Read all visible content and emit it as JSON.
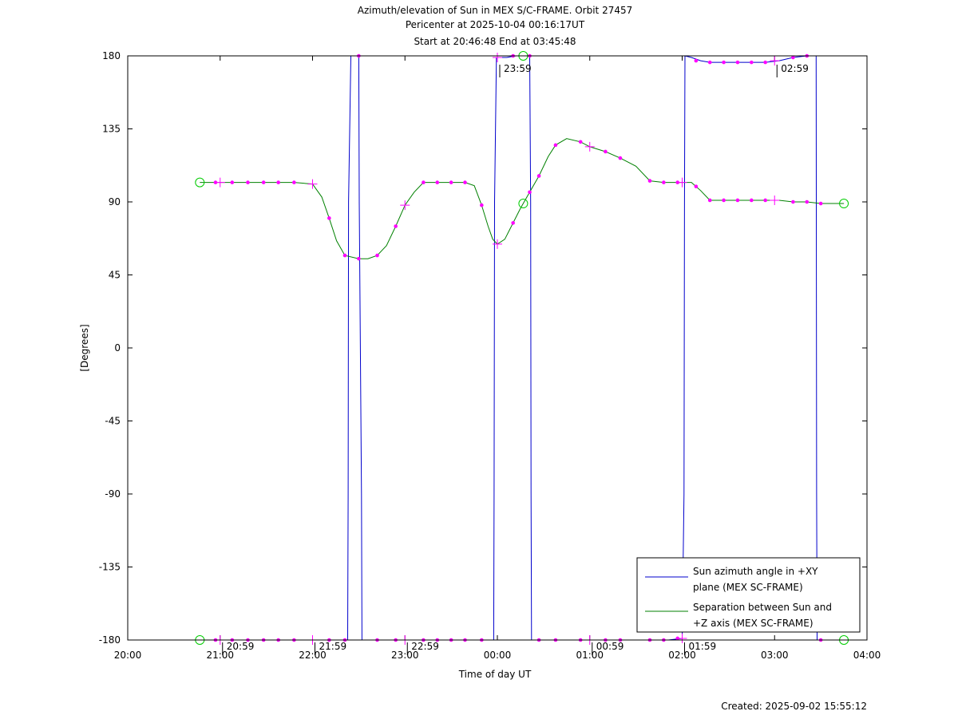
{
  "chart_data": {
    "type": "line",
    "title": [
      "Azimuth/elevation of Sun in MEX S/C-FRAME.  Orbit 27457",
      "Pericenter at 2025-10-04 00:16:17UT",
      "Start at 20:46:48 End at 03:45:48"
    ],
    "xlabel": "Time of day UT",
    "ylabel": "[Degrees]",
    "x_unit": "hours since 20:00 UT",
    "xlim": [
      0,
      8
    ],
    "ylim": [
      -180,
      180
    ],
    "x_ticks": [
      {
        "v": 0,
        "label": "20:00"
      },
      {
        "v": 1,
        "label": "21:00"
      },
      {
        "v": 2,
        "label": "22:00"
      },
      {
        "v": 3,
        "label": "23:00"
      },
      {
        "v": 4,
        "label": "00:00"
      },
      {
        "v": 5,
        "label": "01:00"
      },
      {
        "v": 6,
        "label": "02:00"
      },
      {
        "v": 7,
        "label": "03:00"
      },
      {
        "v": 8,
        "label": "04:00"
      }
    ],
    "y_ticks": [
      {
        "v": 180,
        "label": "180"
      },
      {
        "v": 135,
        "label": "135"
      },
      {
        "v": 90,
        "label": "90"
      },
      {
        "v": 45,
        "label": "45"
      },
      {
        "v": 0,
        "label": "0"
      },
      {
        "v": -45,
        "label": "-45"
      },
      {
        "v": -90,
        "label": "-90"
      },
      {
        "v": -135,
        "label": "-135"
      },
      {
        "v": -180,
        "label": "-180"
      }
    ],
    "annotations": [
      {
        "x": 1.0,
        "y": -180,
        "label": "20:59"
      },
      {
        "x": 2.0,
        "y": -180,
        "label": "21:59"
      },
      {
        "x": 3.0,
        "y": -180,
        "label": "22:59"
      },
      {
        "x": 4.0,
        "y": 180,
        "label": "23:59"
      },
      {
        "x": 5.0,
        "y": -180,
        "label": "00:59"
      },
      {
        "x": 6.0,
        "y": -180,
        "label": "01:59"
      },
      {
        "x": 7.0,
        "y": 180,
        "label": "02:59"
      }
    ],
    "series": [
      {
        "name": "Sun azimuth angle in +XY plane (MEX SC-FRAME)",
        "legend_lines": [
          "Sun azimuth angle in +XY",
          "plane (MEX SC-FRAME)"
        ],
        "color": "#0000cc",
        "x": [
          0.78,
          0.95,
          1.13,
          1.3,
          1.47,
          1.63,
          1.8,
          2.0,
          2.2,
          2.38,
          2.385,
          2.39,
          2.415,
          2.42,
          2.5,
          2.505,
          2.53,
          2.535,
          2.54,
          2.7,
          2.9,
          3.05,
          3.2,
          3.4,
          3.55,
          3.7,
          3.85,
          3.96,
          3.965,
          3.97,
          3.99,
          4.0,
          4.1,
          4.2,
          4.3,
          4.35,
          4.36,
          4.365,
          4.37,
          4.45,
          4.6,
          4.75,
          4.9,
          5.07,
          5.25,
          5.4,
          5.55,
          5.7,
          5.85,
          6.0,
          6.02,
          6.025,
          6.03,
          6.1,
          6.2,
          6.3,
          6.45,
          6.6,
          6.75,
          6.9,
          7.05,
          7.2,
          7.35,
          7.45,
          7.455,
          7.46,
          7.5,
          7.65,
          7.75
        ],
        "y": [
          -180,
          -180,
          -180,
          -180,
          -180,
          -180,
          -180,
          -180,
          -180,
          -180,
          -90,
          90,
          180,
          180,
          180,
          90,
          -90,
          -180,
          -180,
          -180,
          -180,
          -180,
          -180,
          -180,
          -180,
          -180,
          -180,
          -180,
          -90,
          90,
          179,
          179,
          179,
          180,
          180,
          180,
          90,
          -90,
          -180,
          -180,
          -180,
          -180,
          -180,
          -180,
          -180,
          -180,
          -180,
          -180,
          -180,
          -179,
          -90,
          90,
          180,
          179,
          177,
          176,
          176,
          176,
          176,
          176,
          177,
          179,
          180,
          180,
          -90,
          -180,
          -180,
          -180,
          -180
        ]
      },
      {
        "name": "Separation between Sun and +Z axis (MEX SC-FRAME)",
        "legend_lines": [
          "Separation between Sun and",
          "+Z axis (MEX SC-FRAME)"
        ],
        "color": "#008000",
        "x": [
          0.78,
          0.95,
          1.13,
          1.3,
          1.47,
          1.63,
          1.8,
          2.0,
          2.1,
          2.18,
          2.26,
          2.35,
          2.5,
          2.6,
          2.7,
          2.8,
          2.9,
          3.0,
          3.1,
          3.2,
          3.35,
          3.5,
          3.65,
          3.75,
          3.83,
          3.9,
          3.95,
          4.0,
          4.08,
          4.17,
          4.25,
          4.35,
          4.45,
          4.55,
          4.63,
          4.75,
          4.9,
          5.0,
          5.17,
          5.33,
          5.5,
          5.65,
          5.8,
          5.95,
          6.0,
          6.1,
          6.2,
          6.3,
          6.45,
          6.6,
          6.75,
          6.9,
          7.05,
          7.2,
          7.35,
          7.5,
          7.65,
          7.75
        ],
        "y": [
          102,
          102,
          102,
          102,
          102,
          102,
          102,
          101,
          93,
          80,
          66,
          57,
          55,
          55,
          57,
          63,
          75,
          88,
          96,
          102,
          102,
          102,
          102,
          100,
          88,
          75,
          67,
          64,
          67,
          77,
          86,
          96,
          106,
          118,
          125,
          129,
          127,
          124,
          121,
          117,
          112,
          103,
          102,
          102,
          102,
          102,
          97,
          91,
          91,
          91,
          91,
          91,
          91,
          90,
          90,
          89,
          89,
          89
        ]
      }
    ],
    "markers": {
      "dots_x": [
        0.95,
        1.13,
        1.3,
        1.47,
        1.63,
        1.8,
        2.18,
        2.35,
        2.5,
        2.7,
        2.9,
        3.2,
        3.35,
        3.5,
        3.65,
        3.83,
        4.17,
        4.35,
        4.45,
        4.63,
        4.9,
        5.17,
        5.33,
        5.65,
        5.8,
        5.95,
        6.15,
        6.3,
        6.45,
        6.6,
        6.75,
        6.9,
        7.2,
        7.35,
        7.5
      ],
      "crosses_x": [
        1.0,
        2.0,
        3.0,
        4.0,
        5.0,
        6.0,
        7.0
      ],
      "circles_x": [
        0.78,
        4.28,
        7.75
      ],
      "dot_color": "#ff00ff",
      "circle_color": "#00cc00"
    },
    "legend_position": "bottom-right",
    "grid": false
  },
  "footer": {
    "created": "Created: 2025-09-02 15:55:12"
  }
}
